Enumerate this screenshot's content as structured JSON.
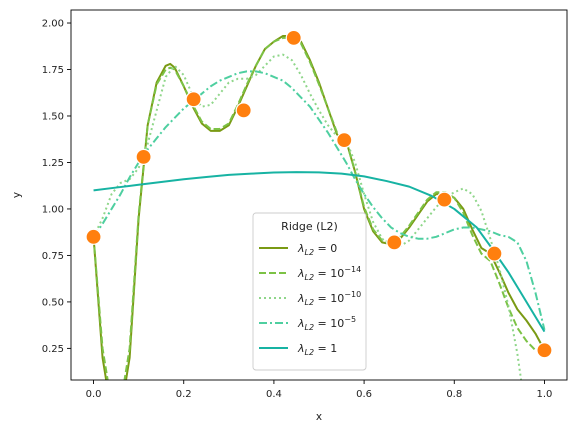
{
  "chart_data": {
    "type": "line",
    "xlabel": "x",
    "ylabel": "y",
    "xlim": [
      -0.05,
      1.05
    ],
    "ylim": [
      0.08,
      2.07
    ],
    "xticks": [
      "0.0",
      "0.2",
      "0.4",
      "0.6",
      "0.8",
      "1.0"
    ],
    "yticks": [
      "0.25",
      "0.50",
      "0.75",
      "1.00",
      "1.25",
      "1.50",
      "1.75",
      "2.00"
    ],
    "grid": false,
    "legend": {
      "title": "Ridge (L2)",
      "placement": "lower-center",
      "entries": [
        {
          "lam": "λ",
          "sub": "L2",
          "eq": " = 0",
          "sup": ""
        },
        {
          "lam": "λ",
          "sub": "L2",
          "eq": " = 10",
          "sup": "−14"
        },
        {
          "lam": "λ",
          "sub": "L2",
          "eq": " = 10",
          "sup": "−10"
        },
        {
          "lam": "λ",
          "sub": "L2",
          "eq": " = 10",
          "sup": "−5"
        },
        {
          "lam": "λ",
          "sub": "L2",
          "eq": " = 1",
          "sup": ""
        }
      ]
    },
    "points": {
      "color": "#ff7f0e",
      "x": [
        0.0,
        0.111,
        0.222,
        0.333,
        0.444,
        0.556,
        0.667,
        0.778,
        0.889,
        1.0
      ],
      "y": [
        0.85,
        1.28,
        1.59,
        1.53,
        1.92,
        1.37,
        0.82,
        1.05,
        0.76,
        0.24
      ]
    },
    "series": [
      {
        "color": "#7a9a14",
        "dash": "",
        "width": 2,
        "x": [
          0.0,
          0.02,
          0.04,
          0.06,
          0.08,
          0.1,
          0.12,
          0.14,
          0.16,
          0.17,
          0.18,
          0.2,
          0.22,
          0.24,
          0.26,
          0.28,
          0.3,
          0.32,
          0.34,
          0.36,
          0.38,
          0.4,
          0.42,
          0.44,
          0.46,
          0.48,
          0.5,
          0.52,
          0.54,
          0.56,
          0.58,
          0.6,
          0.62,
          0.64,
          0.66,
          0.68,
          0.7,
          0.72,
          0.74,
          0.76,
          0.78,
          0.8,
          0.82,
          0.84,
          0.86,
          0.88,
          0.9,
          0.92,
          0.94,
          0.96,
          0.98,
          1.0
        ],
        "y": [
          0.85,
          0.2,
          -0.1,
          -0.1,
          0.2,
          0.95,
          1.45,
          1.68,
          1.77,
          1.78,
          1.76,
          1.66,
          1.55,
          1.46,
          1.42,
          1.42,
          1.45,
          1.55,
          1.66,
          1.77,
          1.86,
          1.9,
          1.93,
          1.93,
          1.9,
          1.8,
          1.68,
          1.54,
          1.4,
          1.37,
          1.2,
          1.0,
          0.88,
          0.82,
          0.81,
          0.84,
          0.9,
          0.97,
          1.04,
          1.08,
          1.08,
          1.06,
          1.0,
          0.89,
          0.79,
          0.76,
          0.66,
          0.55,
          0.46,
          0.4,
          0.33,
          0.24
        ]
      },
      {
        "color": "#7cc245",
        "dash": "7,3",
        "width": 2,
        "x": [
          0.0,
          0.02,
          0.04,
          0.06,
          0.08,
          0.1,
          0.12,
          0.14,
          0.16,
          0.17,
          0.18,
          0.2,
          0.22,
          0.24,
          0.26,
          0.28,
          0.3,
          0.32,
          0.34,
          0.36,
          0.38,
          0.4,
          0.42,
          0.44,
          0.46,
          0.48,
          0.5,
          0.52,
          0.54,
          0.56,
          0.58,
          0.6,
          0.62,
          0.64,
          0.66,
          0.68,
          0.7,
          0.72,
          0.74,
          0.76,
          0.78,
          0.8,
          0.82,
          0.84,
          0.86,
          0.88,
          0.9,
          0.92,
          0.94,
          0.96,
          0.98,
          1.0
        ],
        "y": [
          0.85,
          0.25,
          -0.05,
          -0.05,
          0.25,
          0.97,
          1.45,
          1.67,
          1.75,
          1.76,
          1.75,
          1.66,
          1.56,
          1.47,
          1.43,
          1.43,
          1.46,
          1.56,
          1.67,
          1.77,
          1.86,
          1.9,
          1.92,
          1.92,
          1.89,
          1.79,
          1.67,
          1.54,
          1.41,
          1.37,
          1.2,
          1.01,
          0.89,
          0.83,
          0.82,
          0.85,
          0.91,
          0.98,
          1.05,
          1.09,
          1.09,
          1.06,
          0.98,
          0.86,
          0.76,
          0.72,
          0.6,
          0.47,
          0.36,
          0.29,
          0.24,
          0.24
        ]
      },
      {
        "color": "#8fd68a",
        "dash": "2,3",
        "width": 2,
        "x": [
          0.0,
          0.02,
          0.04,
          0.06,
          0.08,
          0.1,
          0.12,
          0.14,
          0.16,
          0.18,
          0.2,
          0.22,
          0.24,
          0.26,
          0.28,
          0.3,
          0.32,
          0.34,
          0.36,
          0.38,
          0.4,
          0.42,
          0.44,
          0.46,
          0.48,
          0.5,
          0.52,
          0.54,
          0.56,
          0.58,
          0.6,
          0.62,
          0.64,
          0.66,
          0.68,
          0.7,
          0.72,
          0.74,
          0.76,
          0.78,
          0.8,
          0.82,
          0.84,
          0.86,
          0.88,
          0.9,
          0.92,
          0.94,
          0.95
        ],
        "y": [
          0.85,
          0.95,
          1.08,
          1.14,
          1.16,
          1.22,
          1.35,
          1.53,
          1.71,
          1.77,
          1.72,
          1.61,
          1.55,
          1.56,
          1.62,
          1.68,
          1.7,
          1.7,
          1.72,
          1.77,
          1.82,
          1.83,
          1.8,
          1.72,
          1.62,
          1.53,
          1.45,
          1.39,
          1.37,
          1.25,
          1.08,
          0.93,
          0.84,
          0.8,
          0.8,
          0.83,
          0.89,
          0.95,
          1.01,
          1.06,
          1.09,
          1.11,
          1.08,
          0.99,
          0.84,
          0.68,
          0.48,
          0.22,
          0.05
        ]
      },
      {
        "color": "#4ecfa0",
        "dash": "8,3,2,3",
        "width": 2,
        "x": [
          0.0,
          0.02,
          0.04,
          0.06,
          0.08,
          0.1,
          0.12,
          0.14,
          0.16,
          0.18,
          0.2,
          0.22,
          0.24,
          0.26,
          0.28,
          0.3,
          0.32,
          0.34,
          0.36,
          0.38,
          0.4,
          0.42,
          0.44,
          0.46,
          0.48,
          0.5,
          0.52,
          0.54,
          0.56,
          0.58,
          0.6,
          0.62,
          0.64,
          0.66,
          0.68,
          0.7,
          0.72,
          0.74,
          0.76,
          0.78,
          0.8,
          0.82,
          0.84,
          0.86,
          0.88,
          0.9,
          0.92,
          0.94,
          0.96,
          0.98,
          1.0
        ],
        "y": [
          0.85,
          0.92,
          1.0,
          1.08,
          1.17,
          1.25,
          1.32,
          1.38,
          1.44,
          1.49,
          1.54,
          1.58,
          1.62,
          1.66,
          1.69,
          1.71,
          1.73,
          1.74,
          1.74,
          1.73,
          1.71,
          1.69,
          1.65,
          1.6,
          1.55,
          1.48,
          1.41,
          1.33,
          1.25,
          1.16,
          1.08,
          1.01,
          0.95,
          0.9,
          0.87,
          0.85,
          0.84,
          0.84,
          0.85,
          0.87,
          0.89,
          0.9,
          0.9,
          0.89,
          0.88,
          0.86,
          0.85,
          0.82,
          0.72,
          0.55,
          0.35
        ]
      },
      {
        "color": "#17b3a3",
        "dash": "",
        "width": 2,
        "x": [
          0.0,
          0.05,
          0.1,
          0.15,
          0.2,
          0.25,
          0.3,
          0.35,
          0.4,
          0.45,
          0.5,
          0.55,
          0.6,
          0.65,
          0.7,
          0.75,
          0.8,
          0.85,
          0.88,
          0.9,
          0.92,
          0.94,
          0.96,
          0.98,
          1.0
        ],
        "y": [
          1.1,
          1.115,
          1.13,
          1.145,
          1.16,
          1.172,
          1.183,
          1.19,
          1.196,
          1.198,
          1.197,
          1.19,
          1.175,
          1.15,
          1.12,
          1.07,
          1.0,
          0.9,
          0.8,
          0.73,
          0.66,
          0.58,
          0.5,
          0.42,
          0.34
        ]
      }
    ]
  }
}
